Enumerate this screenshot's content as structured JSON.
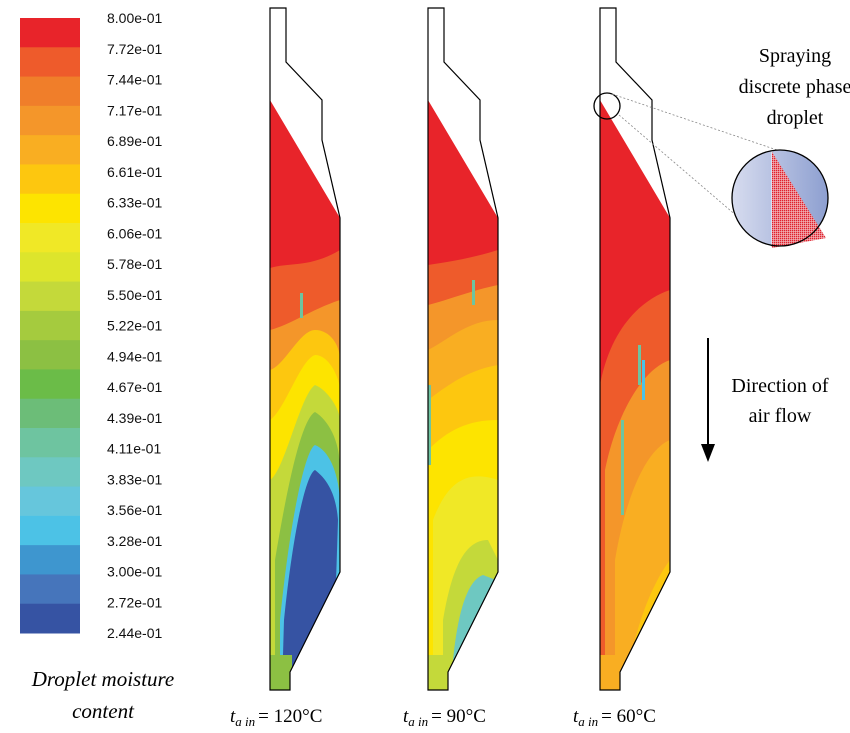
{
  "colorbar": {
    "labels": [
      "8.00e-01",
      "7.72e-01",
      "7.44e-01",
      "7.17e-01",
      "6.89e-01",
      "6.61e-01",
      "6.33e-01",
      "6.06e-01",
      "5.78e-01",
      "5.50e-01",
      "5.22e-01",
      "4.94e-01",
      "4.67e-01",
      "4.39e-01",
      "4.11e-01",
      "3.83e-01",
      "3.56e-01",
      "3.28e-01",
      "3.00e-01",
      "2.72e-01",
      "2.44e-01"
    ],
    "colors": [
      "#e8242a",
      "#ee5b2b",
      "#f07e2a",
      "#f4962a",
      "#f9ae22",
      "#fdc70f",
      "#fde400",
      "#f0e826",
      "#dde52c",
      "#c4d93a",
      "#a5cb3e",
      "#8cc043",
      "#6bbc48",
      "#6cbd78",
      "#6ec4a0",
      "#6ec8c1",
      "#66c6dc",
      "#4cc2e6",
      "#3e96cf",
      "#4675bb",
      "#3653a3"
    ],
    "title": [
      "Droplet moisture",
      "content"
    ]
  },
  "panels": [
    {
      "symbol": "t",
      "subscript": "a in",
      "value": "= 120°C"
    },
    {
      "symbol": "t",
      "subscript": "a in",
      "value": "= 90°C"
    },
    {
      "symbol": "t",
      "subscript": "a in",
      "value": "= 60°C"
    }
  ],
  "annotations": {
    "spraying": [
      "Spraying",
      "discrete phase",
      "droplet"
    ],
    "air_flow": [
      "Direction of",
      "air flow"
    ]
  }
}
